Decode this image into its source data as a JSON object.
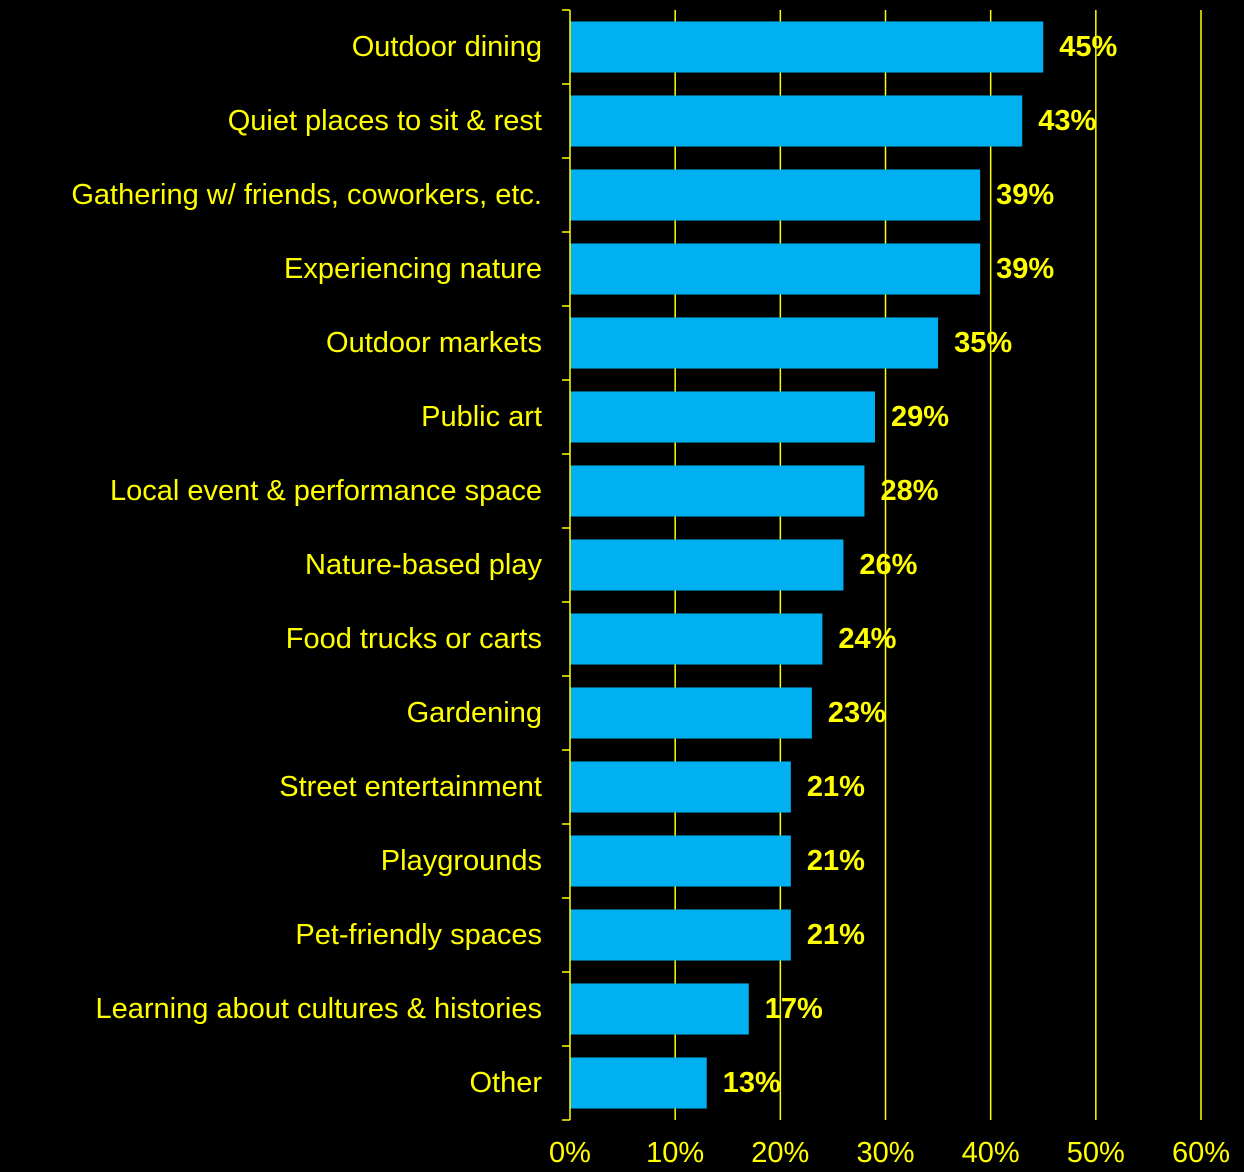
{
  "colors": {
    "background": "#000000",
    "bar": "#00B0F0",
    "text": "#FFFF00",
    "gridline": "#FFFF00"
  },
  "chart_data": {
    "type": "bar",
    "orientation": "horizontal",
    "categories": [
      "Outdoor dining",
      "Quiet places to sit & rest",
      "Gathering w/ friends, coworkers, etc.",
      "Experiencing nature",
      "Outdoor markets",
      "Public art",
      "Local event & performance space",
      "Nature-based play",
      "Food trucks or carts",
      "Gardening",
      "Street entertainment",
      "Playgrounds",
      "Pet-friendly spaces",
      "Learning about cultures & histories",
      "Other"
    ],
    "values": [
      45,
      43,
      39,
      39,
      35,
      29,
      28,
      26,
      24,
      23,
      21,
      21,
      21,
      17,
      13
    ],
    "data_labels": [
      "45%",
      "43%",
      "39%",
      "39%",
      "35%",
      "29%",
      "28%",
      "26%",
      "24%",
      "23%",
      "21%",
      "21%",
      "21%",
      "17%",
      "13%"
    ],
    "xlim": [
      0,
      60
    ],
    "x_ticks": [
      0,
      10,
      20,
      30,
      40,
      50,
      60
    ],
    "x_tick_labels": [
      "0%",
      "10%",
      "20%",
      "30%",
      "40%",
      "50%",
      "60%"
    ],
    "grid": "vertical",
    "legend": "none"
  }
}
